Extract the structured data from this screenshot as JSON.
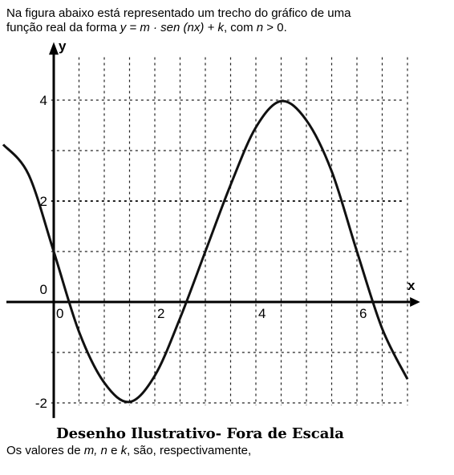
{
  "question": {
    "line1": "Na figura abaixo está representado um trecho do gráfico de uma",
    "line2_prefix": "função real da forma ",
    "formula": "y = m · sen (nx) + k",
    "line2_suffix": ", com ",
    "condition_var": "n",
    "condition_rest": " > 0."
  },
  "caption": "Desenho Ilustrativo- Fora de Escala",
  "prompt": {
    "prefix": "Os valores de ",
    "vars": "m, n",
    "e": " e ",
    "k": "k",
    "suffix": ", são, respectivamente,"
  },
  "chart_data": {
    "type": "line",
    "xlabel": "x",
    "ylabel": "y",
    "x_ticks": [
      "0",
      "2",
      "4",
      "6"
    ],
    "y_ticks": [
      "-2",
      "0",
      "2",
      "4"
    ],
    "xlim": [
      -1,
      7.2
    ],
    "ylim": [
      -2.3,
      5
    ],
    "grid": true,
    "series": [
      {
        "x": [
          -1,
          -0.5,
          0,
          0.5,
          1,
          1.5,
          2,
          2.5,
          3,
          3.5,
          4,
          4.5,
          5,
          5.5,
          6,
          6.5,
          7
        ],
        "y": [
          3.12,
          2.53,
          1.0,
          -0.59,
          -1.6,
          -1.98,
          -1.46,
          -0.32,
          1.0,
          2.32,
          3.46,
          3.98,
          3.6,
          2.59,
          1.0,
          -0.53,
          -1.53
        ]
      }
    ],
    "annotations": [
      {
        "type": "max",
        "x": 4.5,
        "y": 4
      },
      {
        "type": "min",
        "x": 1.5,
        "y": -2
      }
    ]
  }
}
